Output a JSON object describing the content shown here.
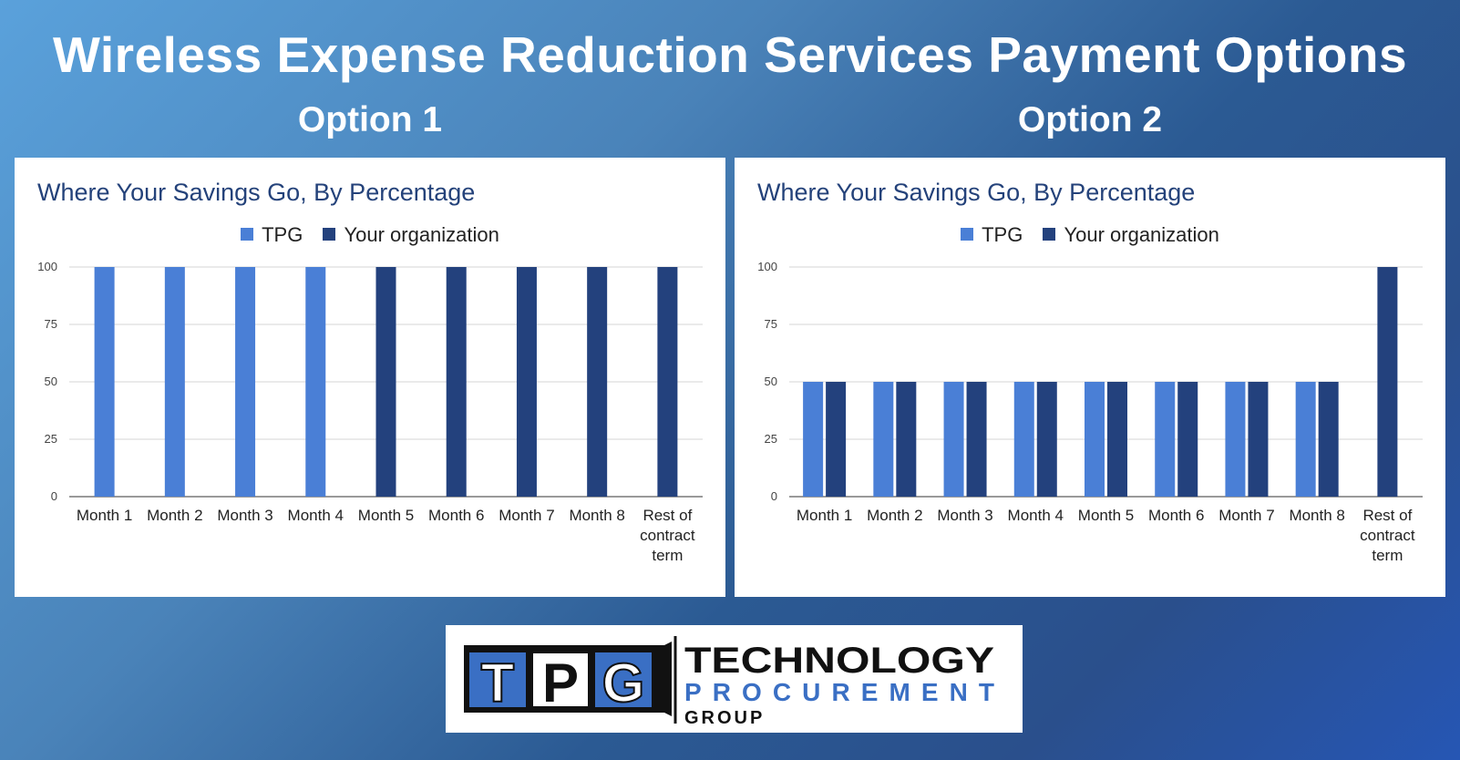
{
  "header": {
    "title": "Wireless Expense Reduction Services Payment Options",
    "option1_label": "Option 1",
    "option2_label": "Option 2"
  },
  "colors": {
    "tpg": "#4a7fd6",
    "org": "#23417d",
    "title": "#24427a"
  },
  "chart_data": [
    {
      "type": "bar",
      "title": "Where Your Savings Go, By Percentage",
      "categories": [
        "Month 1",
        "Month 2",
        "Month 3",
        "Month 4",
        "Month 5",
        "Month 6",
        "Month 7",
        "Month 8",
        "Rest of contract term"
      ],
      "series": [
        {
          "name": "TPG",
          "values": [
            100,
            100,
            100,
            100,
            0,
            0,
            0,
            0,
            0
          ]
        },
        {
          "name": "Your organization",
          "values": [
            0,
            0,
            0,
            0,
            100,
            100,
            100,
            100,
            100
          ]
        }
      ],
      "yticks": [
        "0",
        "25",
        "50",
        "75",
        "100"
      ],
      "ylim": [
        0,
        100
      ],
      "grid": true,
      "legend": "top"
    },
    {
      "type": "bar",
      "title": "Where Your Savings Go, By Percentage",
      "categories": [
        "Month 1",
        "Month 2",
        "Month 3",
        "Month 4",
        "Month 5",
        "Month 6",
        "Month 7",
        "Month 8",
        "Rest of contract term"
      ],
      "series": [
        {
          "name": "TPG",
          "values": [
            50,
            50,
            50,
            50,
            50,
            50,
            50,
            50,
            0
          ]
        },
        {
          "name": "Your organization",
          "values": [
            50,
            50,
            50,
            50,
            50,
            50,
            50,
            50,
            100
          ]
        }
      ],
      "yticks": [
        "0",
        "25",
        "50",
        "75",
        "100"
      ],
      "ylim": [
        0,
        100
      ],
      "grid": true,
      "legend": "top"
    }
  ],
  "logo": {
    "monogram": [
      "T",
      "P",
      "G"
    ],
    "line1": "TECHNOLOGY",
    "line2": "PROCUREMENT",
    "line3": "GROUP"
  }
}
